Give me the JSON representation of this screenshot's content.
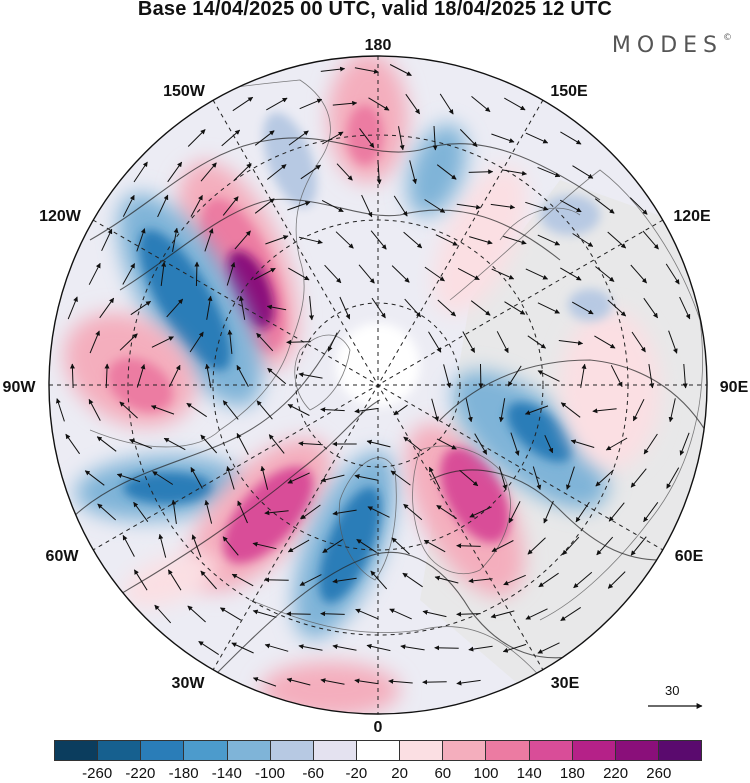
{
  "title": "Base 14/04/2025 00 UTC, valid 18/04/2025 12 UTC",
  "brand": "MODES",
  "brand_mark": "©",
  "longitude_labels": {
    "top": "180",
    "top_left": "150W",
    "top_right": "150E",
    "upper_left": "120W",
    "upper_right": "120E",
    "left": "90W",
    "right": "90E",
    "lower_left": "60W",
    "lower_right": "60E",
    "bottom_left": "30W",
    "bottom_right": "30E",
    "bottom": "0"
  },
  "wind_scale": {
    "value": "30"
  },
  "colorbar": {
    "ticks": [
      "-260",
      "-220",
      "-180",
      "-140",
      "-100",
      "-60",
      "-20",
      "20",
      "60",
      "100",
      "140",
      "180",
      "220",
      "260"
    ],
    "colors": [
      "#0b3d5e",
      "#16608f",
      "#2a7db8",
      "#4c9bcc",
      "#7fb4d8",
      "#b7c9e3",
      "#e4e2f0",
      "#ffffff",
      "#fbdfe3",
      "#f4aebd",
      "#ec7ba2",
      "#d94d98",
      "#b52188",
      "#8a0f7a",
      "#5a0a6e"
    ]
  },
  "chart_data": {
    "type": "polar-stereographic-anomaly-map",
    "projection": "north polar stereographic",
    "center": "North Pole",
    "valid_time": "18/04/2025 12 UTC",
    "base_time": "14/04/2025 00 UTC",
    "field_range": [
      -260,
      260
    ],
    "anomaly_centres": [
      {
        "sign": "positive",
        "region": "Alaska/Canada 130W",
        "strength": "strong"
      },
      {
        "sign": "negative",
        "region": "Canada 110W",
        "strength": "strong"
      },
      {
        "sign": "positive",
        "region": "Hudson Bay 95W",
        "strength": "moderate"
      },
      {
        "sign": "negative",
        "region": "North Atlantic 65W",
        "strength": "moderate"
      },
      {
        "sign": "positive",
        "region": "Atlantic 45W",
        "strength": "strong"
      },
      {
        "sign": "negative",
        "region": "Atlantic/Greenland 10W",
        "strength": "strong"
      },
      {
        "sign": "positive",
        "region": "Scandinavia 30E",
        "strength": "strong"
      },
      {
        "sign": "negative",
        "region": "Russia 75E",
        "strength": "moderate"
      },
      {
        "sign": "positive",
        "region": "North Pacific 180",
        "strength": "moderate"
      },
      {
        "sign": "negative",
        "region": "Pacific 165W",
        "strength": "weak"
      },
      {
        "sign": "negative",
        "region": "Siberia 170E",
        "strength": "weak"
      }
    ]
  }
}
